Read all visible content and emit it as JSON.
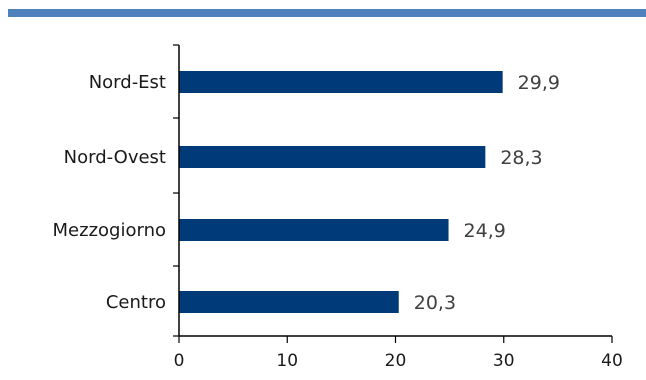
{
  "chart_data": {
    "type": "bar",
    "orientation": "horizontal",
    "categories": [
      "Nord-Est",
      "Nord-Ovest",
      "Mezzogiorno",
      "Centro"
    ],
    "values": [
      29.9,
      28.3,
      24.9,
      20.3
    ],
    "value_labels": [
      "29,9",
      "28,3",
      "24,9",
      "20,3"
    ],
    "xlim": [
      0,
      40
    ],
    "x_ticks": [
      0,
      10,
      20,
      30,
      40
    ],
    "x_tick_labels": [
      "0",
      "10",
      "20",
      "30",
      "40"
    ],
    "grid": false,
    "colors": {
      "bar": "#003a78",
      "top_rule": "#4f81bd",
      "axis": "#000000"
    }
  }
}
